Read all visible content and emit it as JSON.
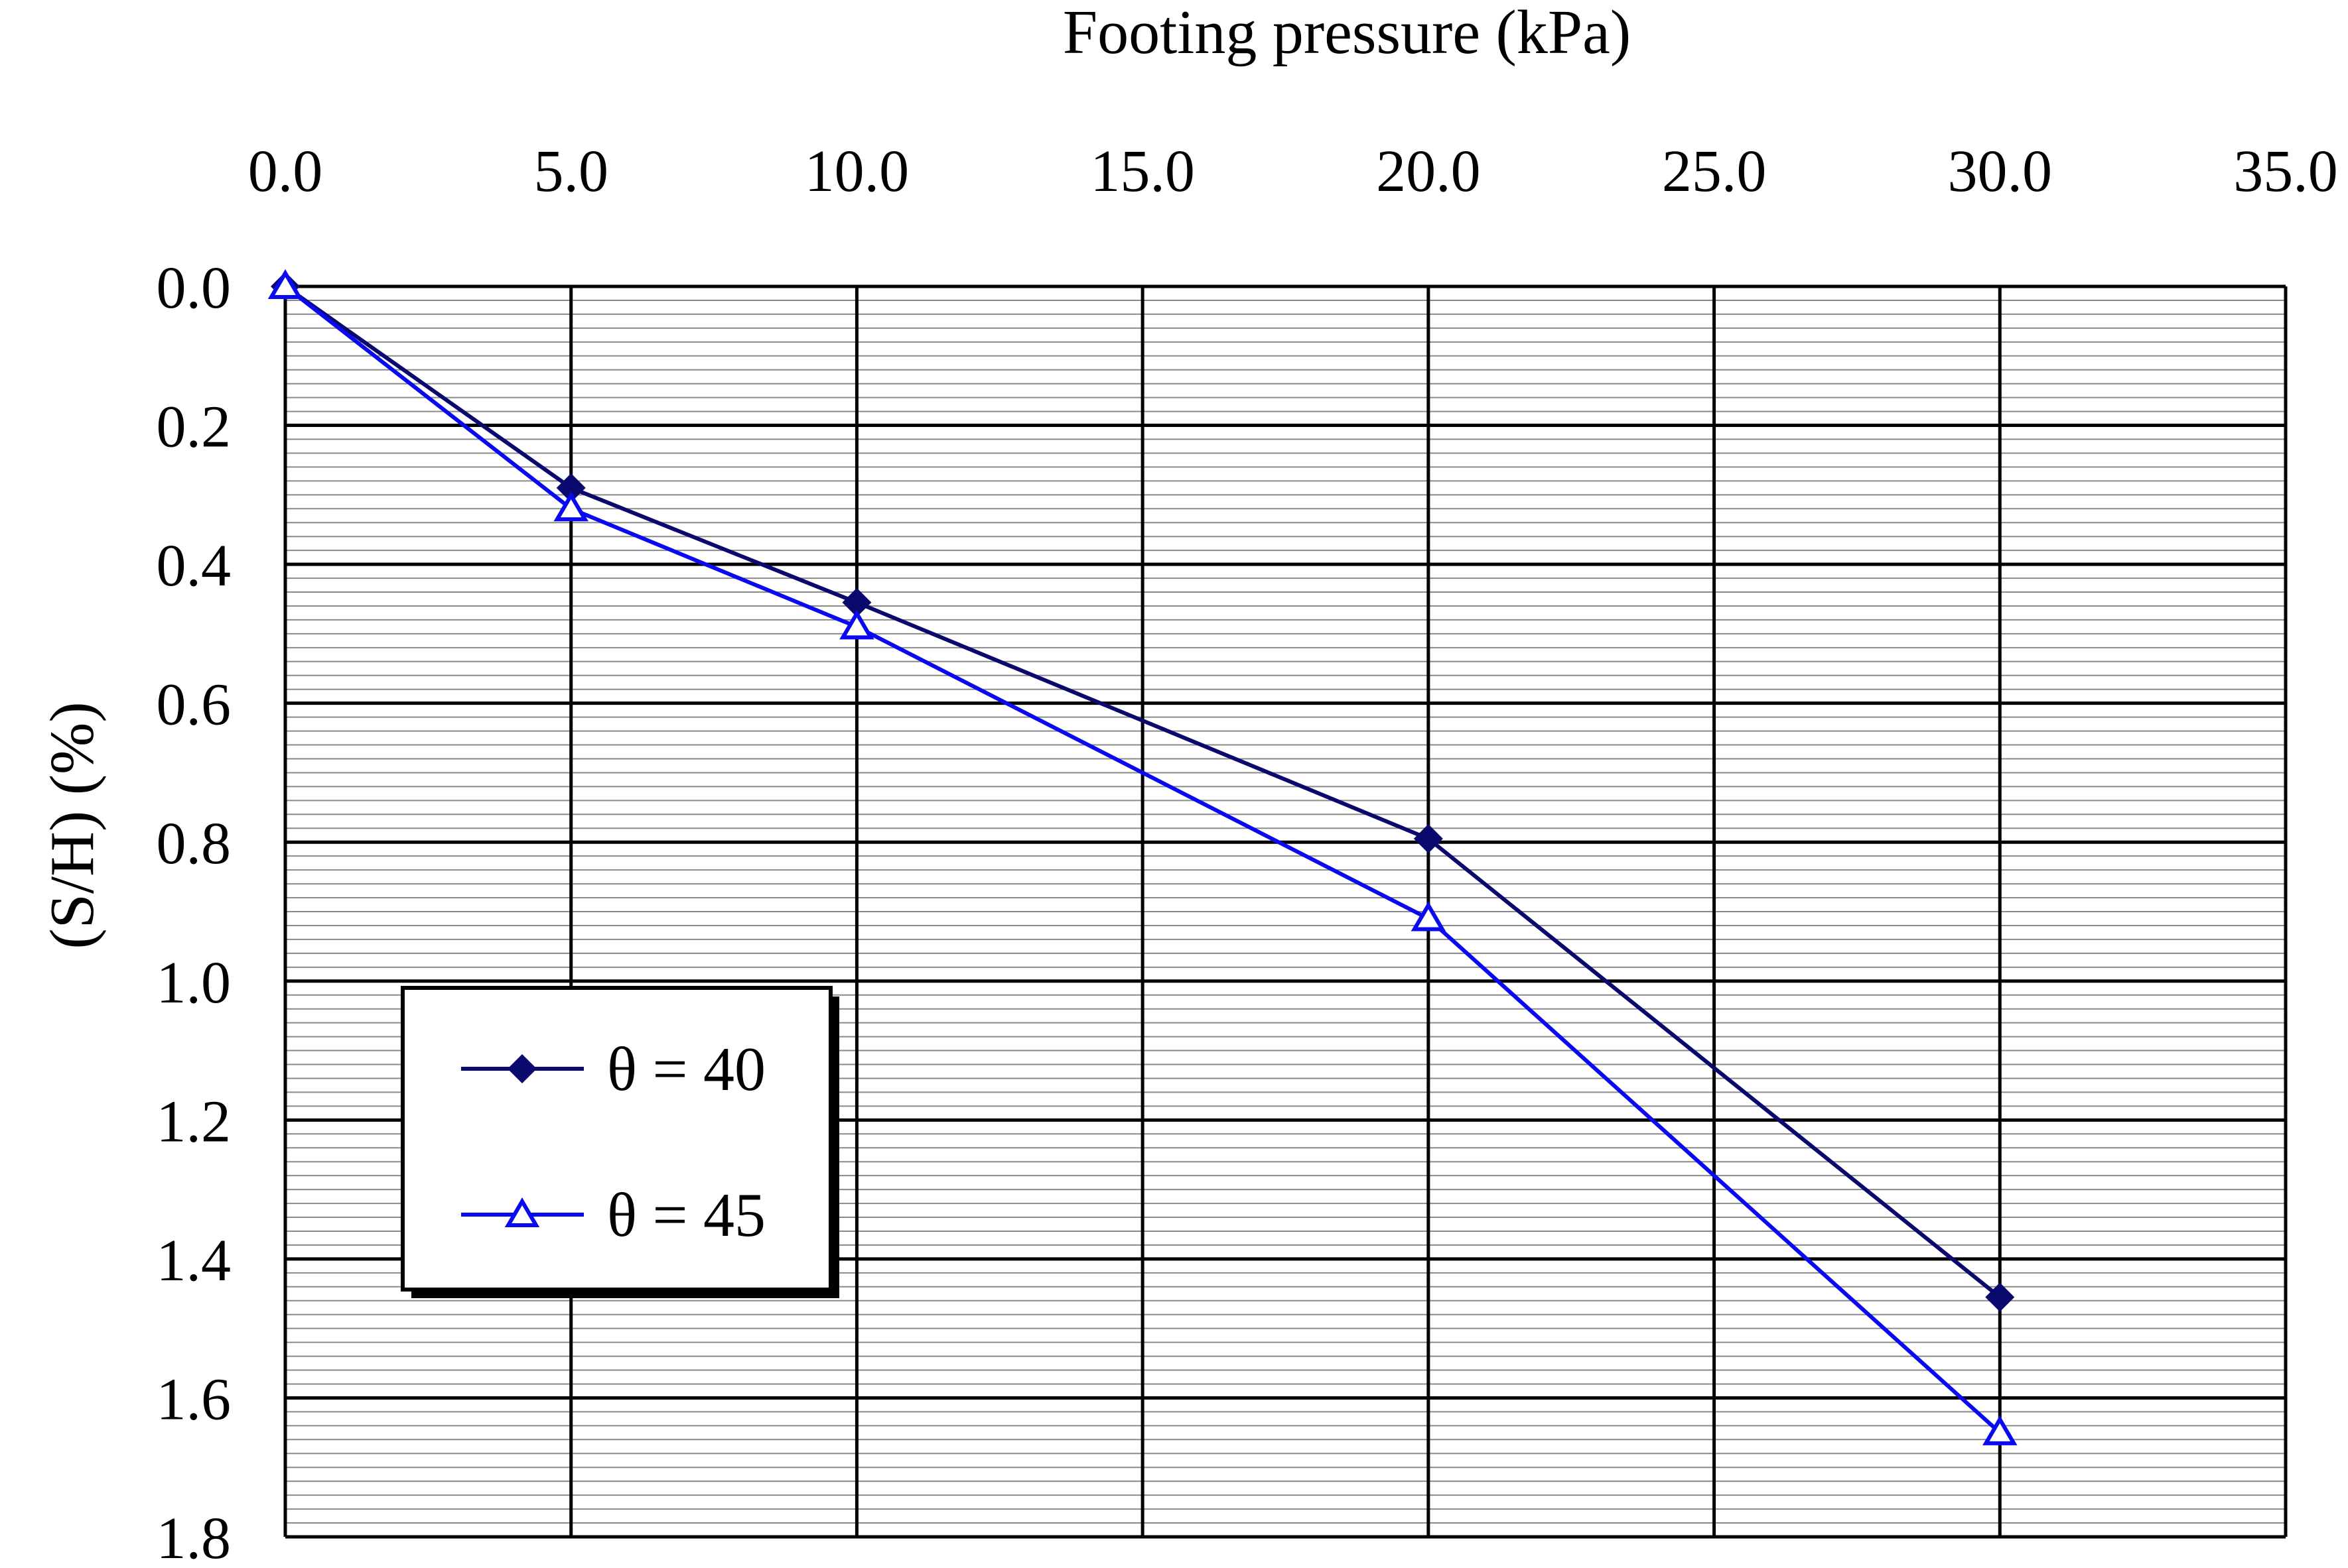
{
  "chart_data": {
    "type": "line",
    "xlabel": "Footing pressure  (kPa)",
    "ylabel": "(S/H) (%)",
    "xlim": [
      0,
      35
    ],
    "ylim": [
      0,
      1.8
    ],
    "y_inverted": true,
    "x_axis_position": "top",
    "x_ticks": [
      "0.0",
      "5.0",
      "10.0",
      "15.0",
      "20.0",
      "25.0",
      "30.0",
      "35.0"
    ],
    "y_ticks": [
      "0.0",
      "0.2",
      "0.4",
      "0.6",
      "0.8",
      "1.0",
      "1.2",
      "1.4",
      "1.6",
      "1.8"
    ],
    "grid": "major and minor",
    "legend_position": "lower-left",
    "series": [
      {
        "name": "θ = 40",
        "marker": "diamond",
        "color": "#0A0A6E",
        "x": [
          0,
          5,
          10,
          20,
          30
        ],
        "y": [
          0.0,
          0.29,
          0.455,
          0.795,
          1.455
        ]
      },
      {
        "name": "θ = 45",
        "marker": "triangle",
        "color": "#0A0AF0",
        "x": [
          0,
          5,
          10,
          20,
          30
        ],
        "y": [
          0.0,
          0.32,
          0.49,
          0.91,
          1.65
        ]
      }
    ]
  }
}
